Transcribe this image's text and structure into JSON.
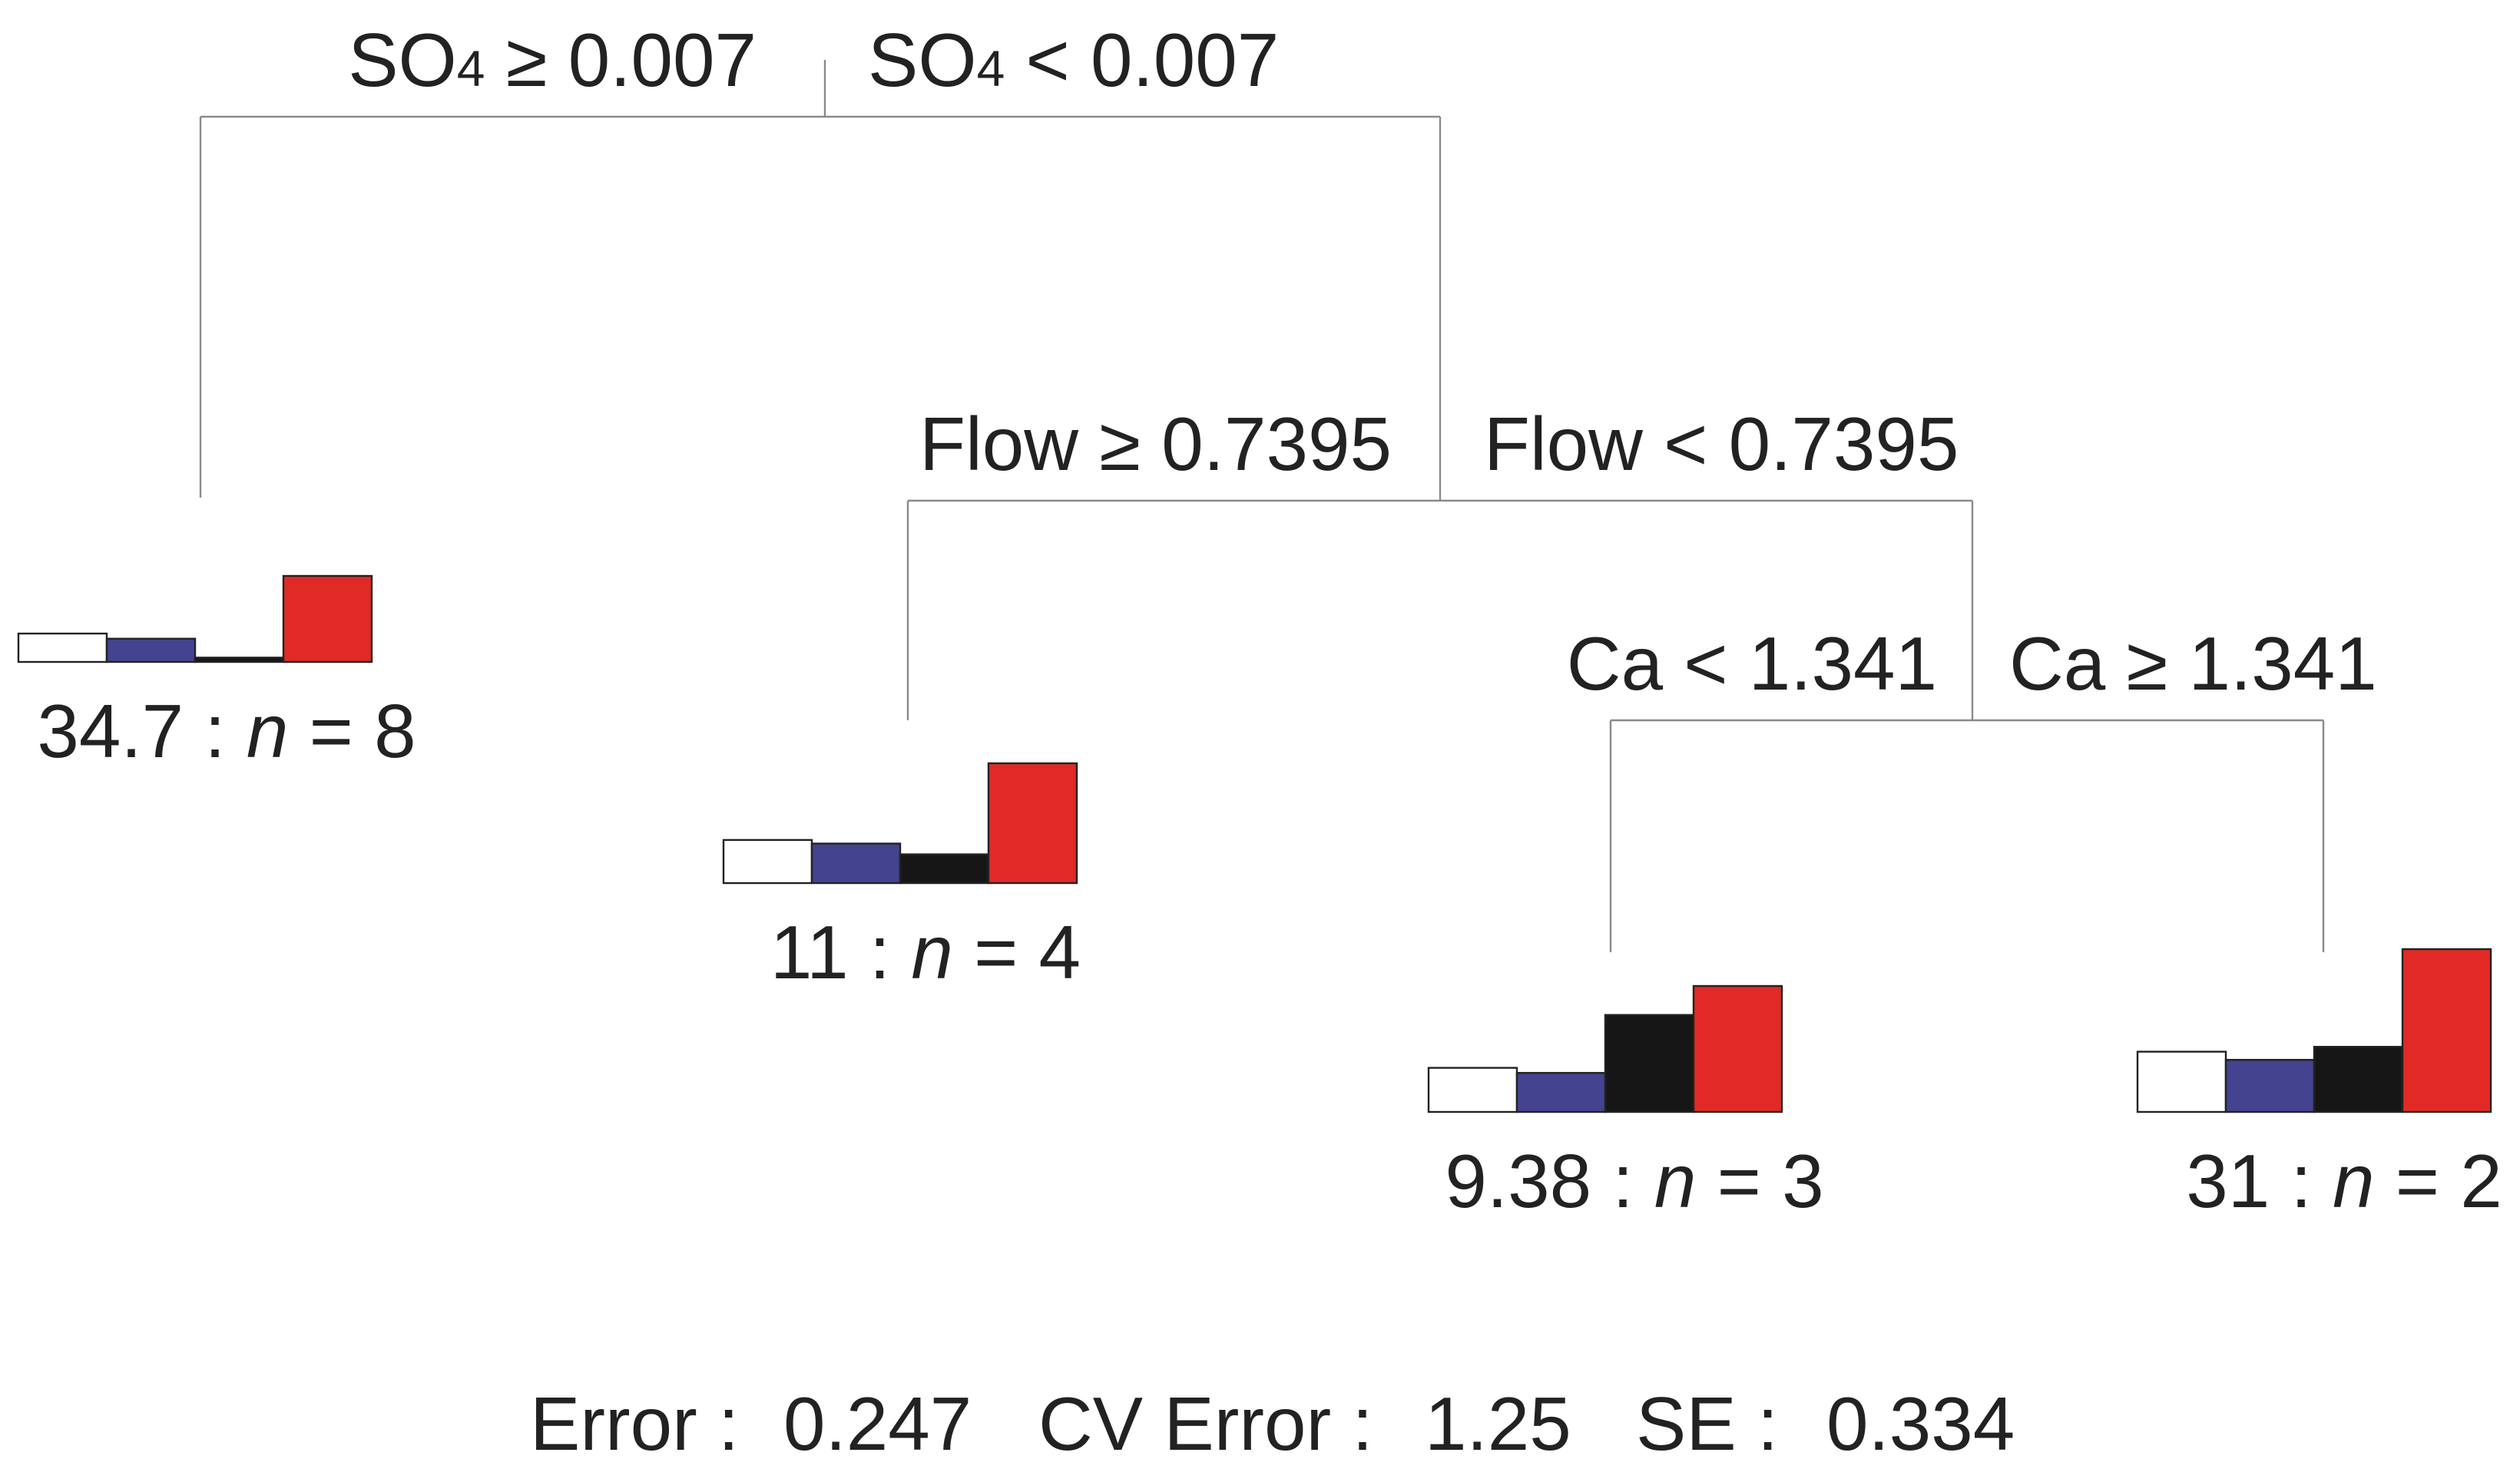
{
  "tree": {
    "root_split": {
      "left_label": "≥ 0.007",
      "right_label": "< 0.007",
      "variable_main": "SO",
      "variable_sub": "4"
    },
    "split_flow": {
      "left_label": "Flow ≥ 0.7395",
      "right_label": "Flow < 0.7395"
    },
    "split_ca": {
      "left_label": "Ca < 1.341",
      "right_label": "Ca ≥ 1.341"
    },
    "leaves": [
      {
        "id": "leaf-1",
        "value": "34.7",
        "n": "8",
        "bars": [
          0.33,
          0.27,
          0.05,
          1.0
        ]
      },
      {
        "id": "leaf-2",
        "value": "11",
        "n": "4",
        "bars": [
          0.36,
          0.33,
          0.24,
          1.0
        ]
      },
      {
        "id": "leaf-3",
        "value": "9.38",
        "n": "3",
        "bars": [
          0.35,
          0.31,
          0.77,
          1.0
        ]
      },
      {
        "id": "leaf-4",
        "value": "31",
        "n": "2",
        "bars": [
          0.37,
          0.32,
          0.4,
          1.0
        ]
      }
    ],
    "n_symbol": "n",
    "bar_colors": [
      "#ffffff",
      "#43438f",
      "#161616",
      "#e12a26"
    ]
  },
  "footer": {
    "error_label": "Error :",
    "error_value": "0.247",
    "cv_error_label": "CV Error :",
    "cv_error_value": "1.25",
    "se_label": "SE :",
    "se_value": "0.334"
  }
}
